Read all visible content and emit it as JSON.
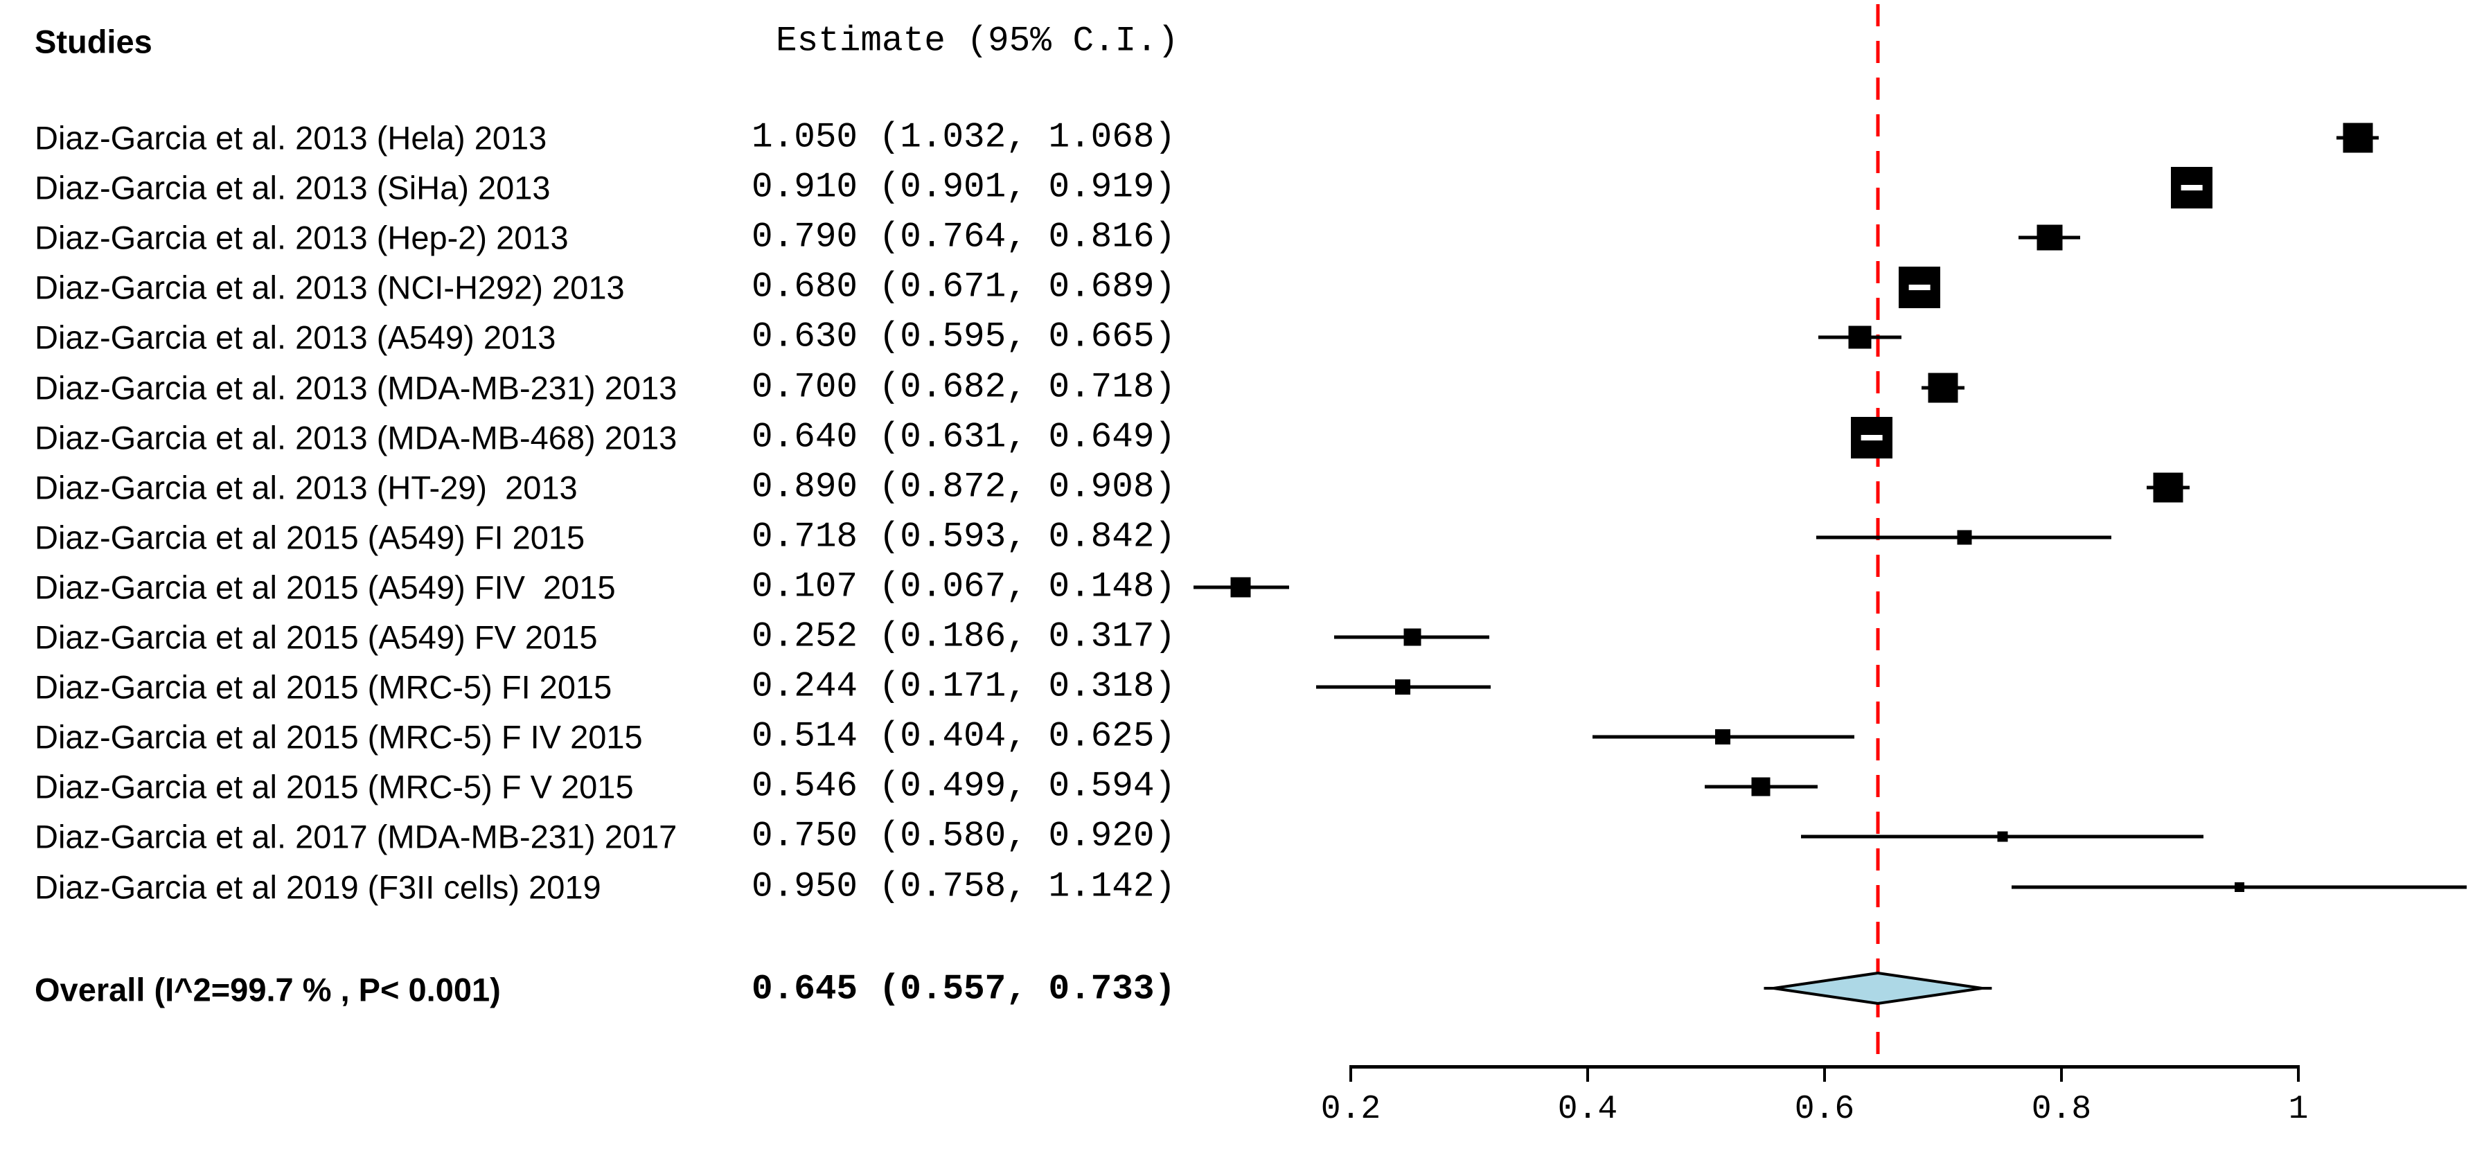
{
  "header": {
    "studies": "Studies",
    "estimate": "Estimate (95% C.I.)"
  },
  "overall": {
    "label": "Overall (I^2=99.7 % , P< 0.001)",
    "estimate_text": "0.645 (0.557, 0.733)"
  },
  "chart_data": {
    "type": "forest",
    "title": "",
    "xlabel": "",
    "x_axis": {
      "min": 0.2,
      "max": 1.0,
      "ticks": [
        0.2,
        0.4,
        0.6,
        0.8,
        1
      ],
      "tick_labels": [
        "0.2",
        "0.4",
        "0.6",
        "0.8",
        "1"
      ]
    },
    "reference_line": 0.645,
    "overall": {
      "label": "Overall (I^2=99.7 % , P< 0.001)",
      "estimate": 0.645,
      "ci_lower": 0.557,
      "ci_upper": 0.733
    },
    "studies": [
      {
        "name": "Diaz-Garcia et al. 2013 (Hela) 2013",
        "estimate_text": "1.050 (1.032, 1.068)",
        "estimate": 1.05,
        "ci_lower": 1.032,
        "ci_upper": 1.068,
        "marker_size": 43
      },
      {
        "name": "Diaz-Garcia et al. 2013 (SiHa) 2013",
        "estimate_text": "0.910 (0.901, 0.919)",
        "estimate": 0.91,
        "ci_lower": 0.901,
        "ci_upper": 0.919,
        "marker_size": 60
      },
      {
        "name": "Diaz-Garcia et al. 2013 (Hep-2) 2013",
        "estimate_text": "0.790 (0.764, 0.816)",
        "estimate": 0.79,
        "ci_lower": 0.764,
        "ci_upper": 0.816,
        "marker_size": 37
      },
      {
        "name": "Diaz-Garcia et al. 2013 (NCI-H292) 2013",
        "estimate_text": "0.680 (0.671, 0.689)",
        "estimate": 0.68,
        "ci_lower": 0.671,
        "ci_upper": 0.689,
        "marker_size": 60
      },
      {
        "name": "Diaz-Garcia et al. 2013 (A549) 2013",
        "estimate_text": "0.630 (0.595, 0.665)",
        "estimate": 0.63,
        "ci_lower": 0.595,
        "ci_upper": 0.665,
        "marker_size": 33
      },
      {
        "name": "Diaz-Garcia et al. 2013 (MDA-MB-231) 2013",
        "estimate_text": "0.700 (0.682, 0.718)",
        "estimate": 0.7,
        "ci_lower": 0.682,
        "ci_upper": 0.718,
        "marker_size": 43
      },
      {
        "name": "Diaz-Garcia et al. 2013 (MDA-MB-468) 2013",
        "estimate_text": "0.640 (0.631, 0.649)",
        "estimate": 0.64,
        "ci_lower": 0.631,
        "ci_upper": 0.649,
        "marker_size": 60
      },
      {
        "name": "Diaz-Garcia et al. 2013 (HT-29)  2013",
        "estimate_text": "0.890 (0.872, 0.908)",
        "estimate": 0.89,
        "ci_lower": 0.872,
        "ci_upper": 0.908,
        "marker_size": 43
      },
      {
        "name": "Diaz-Garcia et al 2015 (A549) FI 2015",
        "estimate_text": "0.718 (0.593, 0.842)",
        "estimate": 0.718,
        "ci_lower": 0.593,
        "ci_upper": 0.842,
        "marker_size": 21
      },
      {
        "name": "Diaz-Garcia et al 2015 (A549) FIV  2015",
        "estimate_text": "0.107 (0.067, 0.148)",
        "estimate": 0.107,
        "ci_lower": 0.067,
        "ci_upper": 0.148,
        "marker_size": 29
      },
      {
        "name": "Diaz-Garcia et al 2015 (A549) FV 2015",
        "estimate_text": "0.252 (0.186, 0.317)",
        "estimate": 0.252,
        "ci_lower": 0.186,
        "ci_upper": 0.317,
        "marker_size": 25
      },
      {
        "name": "Diaz-Garcia et al 2015 (MRC-5) FI 2015",
        "estimate_text": "0.244 (0.171, 0.318)",
        "estimate": 0.244,
        "ci_lower": 0.171,
        "ci_upper": 0.318,
        "marker_size": 22
      },
      {
        "name": "Diaz-Garcia et al 2015 (MRC-5) F IV 2015",
        "estimate_text": "0.514 (0.404, 0.625)",
        "estimate": 0.514,
        "ci_lower": 0.404,
        "ci_upper": 0.625,
        "marker_size": 22
      },
      {
        "name": "Diaz-Garcia et al 2015 (MRC-5) F V 2015",
        "estimate_text": "0.546 (0.499, 0.594)",
        "estimate": 0.546,
        "ci_lower": 0.499,
        "ci_upper": 0.594,
        "marker_size": 27
      },
      {
        "name": "Diaz-Garcia et al. 2017 (MDA-MB-231) 2017",
        "estimate_text": "0.750 (0.580, 0.920)",
        "estimate": 0.75,
        "ci_lower": 0.58,
        "ci_upper": 0.92,
        "marker_size": 15
      },
      {
        "name": "Diaz-Garcia et al 2019 (F3II cells) 2019",
        "estimate_text": "0.950 (0.758, 1.142)",
        "estimate": 0.95,
        "ci_lower": 0.758,
        "ci_upper": 1.142,
        "marker_size": 14
      }
    ],
    "colors": {
      "marker": "#000000",
      "ci_line": "#000000",
      "reference_line": "#FF0000",
      "diamond_fill": "#ADD8E6",
      "diamond_border": "#000000",
      "axis": "#000000",
      "text": "#000000"
    },
    "legend_position": "none",
    "grid": false
  }
}
